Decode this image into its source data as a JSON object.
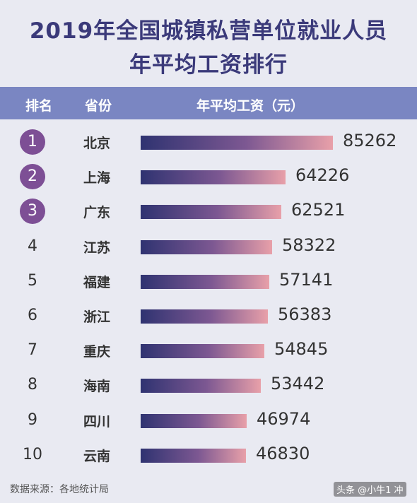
{
  "title_line1": "2019年全国城镇私营单位就业人员",
  "title_line2": "年平均工资排行",
  "header": {
    "rank": "排名",
    "province": "省份",
    "wage": "年平均工资（元）"
  },
  "source": "数据来源：各地统计局",
  "watermark": "头条 @小牛1 冲",
  "colors": {
    "circle": "#7d4f95",
    "header": "#7a86c2",
    "bar_start": "#2f3371",
    "bar_end": "#e8a0a9",
    "title": "#3b3a7a"
  },
  "chart_data": {
    "type": "bar",
    "title": "2019年全国城镇私营单位就业人员年平均工资排行",
    "xlabel": "",
    "ylabel": "年平均工资（元）",
    "categories": [
      "北京",
      "上海",
      "广东",
      "江苏",
      "福建",
      "浙江",
      "重庆",
      "海南",
      "四川",
      "云南"
    ],
    "ranks": [
      "1",
      "2",
      "3",
      "4",
      "5",
      "6",
      "7",
      "8",
      "9",
      "10"
    ],
    "values": [
      85262,
      64226,
      62521,
      58322,
      57141,
      56383,
      54845,
      53442,
      46974,
      46830
    ],
    "ylim": [
      0,
      85262
    ],
    "grid": false,
    "legend": "none"
  }
}
